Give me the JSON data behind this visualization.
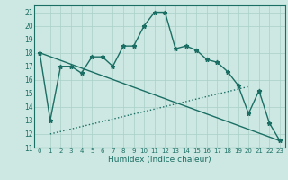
{
  "xlabel": "Humidex (Indice chaleur)",
  "bg_color": "#cde8e2",
  "line_color": "#1a6e64",
  "grid_color": "#a8d0c8",
  "xlim": [
    -0.5,
    23.5
  ],
  "ylim": [
    11,
    21.5
  ],
  "yticks": [
    11,
    12,
    13,
    14,
    15,
    16,
    17,
    18,
    19,
    20,
    21
  ],
  "xticks": [
    0,
    1,
    2,
    3,
    4,
    5,
    6,
    7,
    8,
    9,
    10,
    11,
    12,
    13,
    14,
    15,
    16,
    17,
    18,
    19,
    20,
    21,
    22,
    23
  ],
  "series": [
    {
      "x": [
        0,
        1,
        2,
        3,
        4,
        5,
        6,
        7,
        8,
        9,
        10,
        11,
        12,
        13,
        14,
        15,
        16,
        17,
        18,
        19,
        20,
        21,
        22,
        23
      ],
      "y": [
        18,
        13,
        17,
        17,
        16.5,
        17.7,
        17.7,
        17.0,
        18.5,
        18.5,
        20,
        21,
        21,
        18.3,
        18.5,
        18.2,
        17.5,
        17.3,
        16.6,
        15.6,
        13.5,
        15.2,
        12.8,
        11.5
      ],
      "marker": "*",
      "linestyle": "-",
      "linewidth": 1.0
    },
    {
      "x": [
        0,
        23
      ],
      "y": [
        18,
        11.5
      ],
      "marker": null,
      "linestyle": "-",
      "linewidth": 1.0
    },
    {
      "x": [
        1,
        20
      ],
      "y": [
        12,
        15.5
      ],
      "marker": null,
      "linestyle": ":",
      "linewidth": 1.0
    }
  ]
}
